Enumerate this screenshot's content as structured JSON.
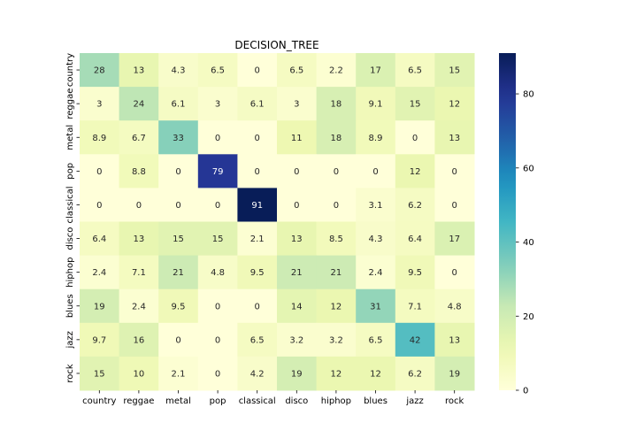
{
  "chart_data": {
    "type": "heatmap",
    "title": "DECISION_TREE",
    "xlabel": "",
    "ylabel": "",
    "x_categories": [
      "country",
      "reggae",
      "metal",
      "pop",
      "classical",
      "disco",
      "hiphop",
      "blues",
      "jazz",
      "rock"
    ],
    "y_categories": [
      "country",
      "reggae",
      "metal",
      "pop",
      "classical",
      "disco",
      "hiphop",
      "blues",
      "jazz",
      "rock"
    ],
    "values": [
      [
        28,
        13,
        4.3,
        6.5,
        0,
        6.5,
        2.2,
        17,
        6.5,
        15
      ],
      [
        3,
        24,
        6.1,
        3,
        6.1,
        3,
        18,
        9.1,
        15,
        12
      ],
      [
        8.9,
        6.7,
        33,
        0,
        0,
        11,
        18,
        8.9,
        0,
        13
      ],
      [
        0,
        8.8,
        0,
        79,
        0,
        0,
        0,
        0,
        12,
        0
      ],
      [
        0,
        0,
        0,
        0,
        91,
        0,
        0,
        3.1,
        6.2,
        0
      ],
      [
        6.4,
        13,
        15,
        15,
        2.1,
        13,
        8.5,
        4.3,
        6.4,
        17
      ],
      [
        2.4,
        7.1,
        21,
        4.8,
        9.5,
        21,
        21,
        2.4,
        9.5,
        0
      ],
      [
        19,
        2.4,
        9.5,
        0,
        0,
        14,
        12,
        31,
        7.1,
        4.8
      ],
      [
        9.7,
        16,
        0,
        0,
        6.5,
        3.2,
        3.2,
        6.5,
        42,
        13
      ],
      [
        15,
        10,
        2.1,
        0,
        4.2,
        19,
        12,
        12,
        6.2,
        19
      ]
    ],
    "colormap": "YlGnBu",
    "vmin": 0,
    "vmax": 91,
    "colorbar_ticks": [
      0,
      20,
      40,
      60,
      80
    ],
    "annotated": true,
    "grid": false
  }
}
